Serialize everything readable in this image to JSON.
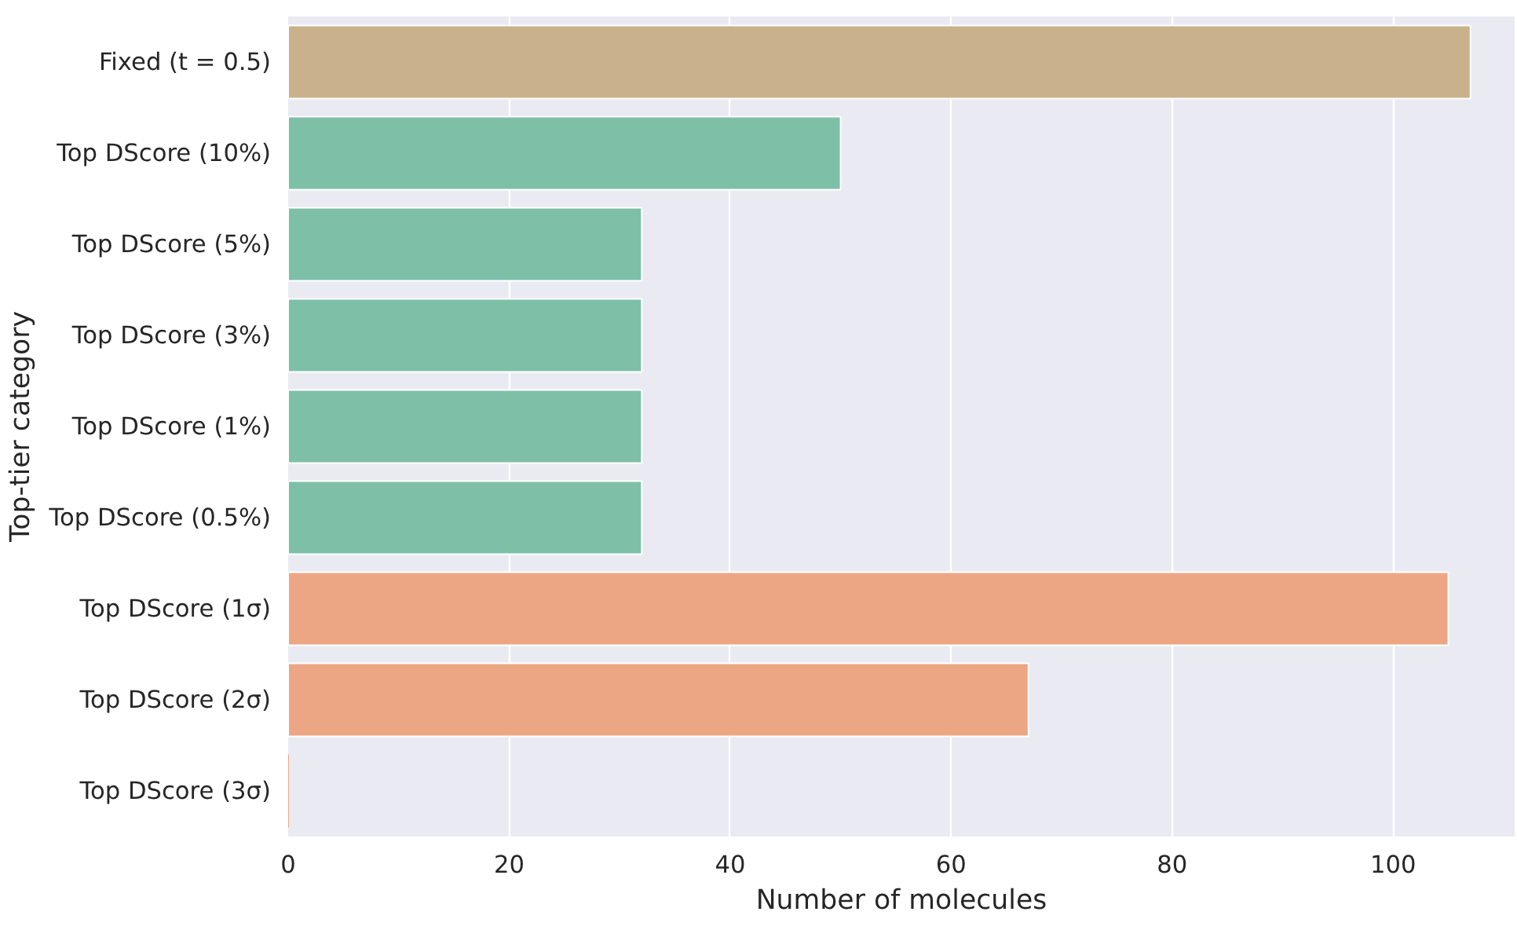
{
  "chart_data": {
    "type": "bar",
    "orientation": "horizontal",
    "xlabel": "Number of molecules",
    "ylabel": "Top-tier category",
    "categories": [
      "Fixed (t = 0.5)",
      "Top DScore (10%)",
      "Top DScore (5%)",
      "Top DScore (3%)",
      "Top DScore (1%)",
      "Top DScore (0.5%)",
      "Top DScore (1σ)",
      "Top DScore (2σ)",
      "Top DScore (3σ)"
    ],
    "values": [
      107,
      50,
      32,
      32,
      32,
      32,
      105,
      67,
      0
    ],
    "colors": [
      "#c9b18b",
      "#7dc0a7",
      "#7dc0a7",
      "#7dc0a7",
      "#7dc0a7",
      "#7dc0a7",
      "#eda684",
      "#eda684",
      "#eda684"
    ],
    "xlim": [
      0,
      111
    ],
    "xticks": [
      0,
      20,
      40,
      60,
      80,
      100
    ],
    "grid": "x"
  }
}
